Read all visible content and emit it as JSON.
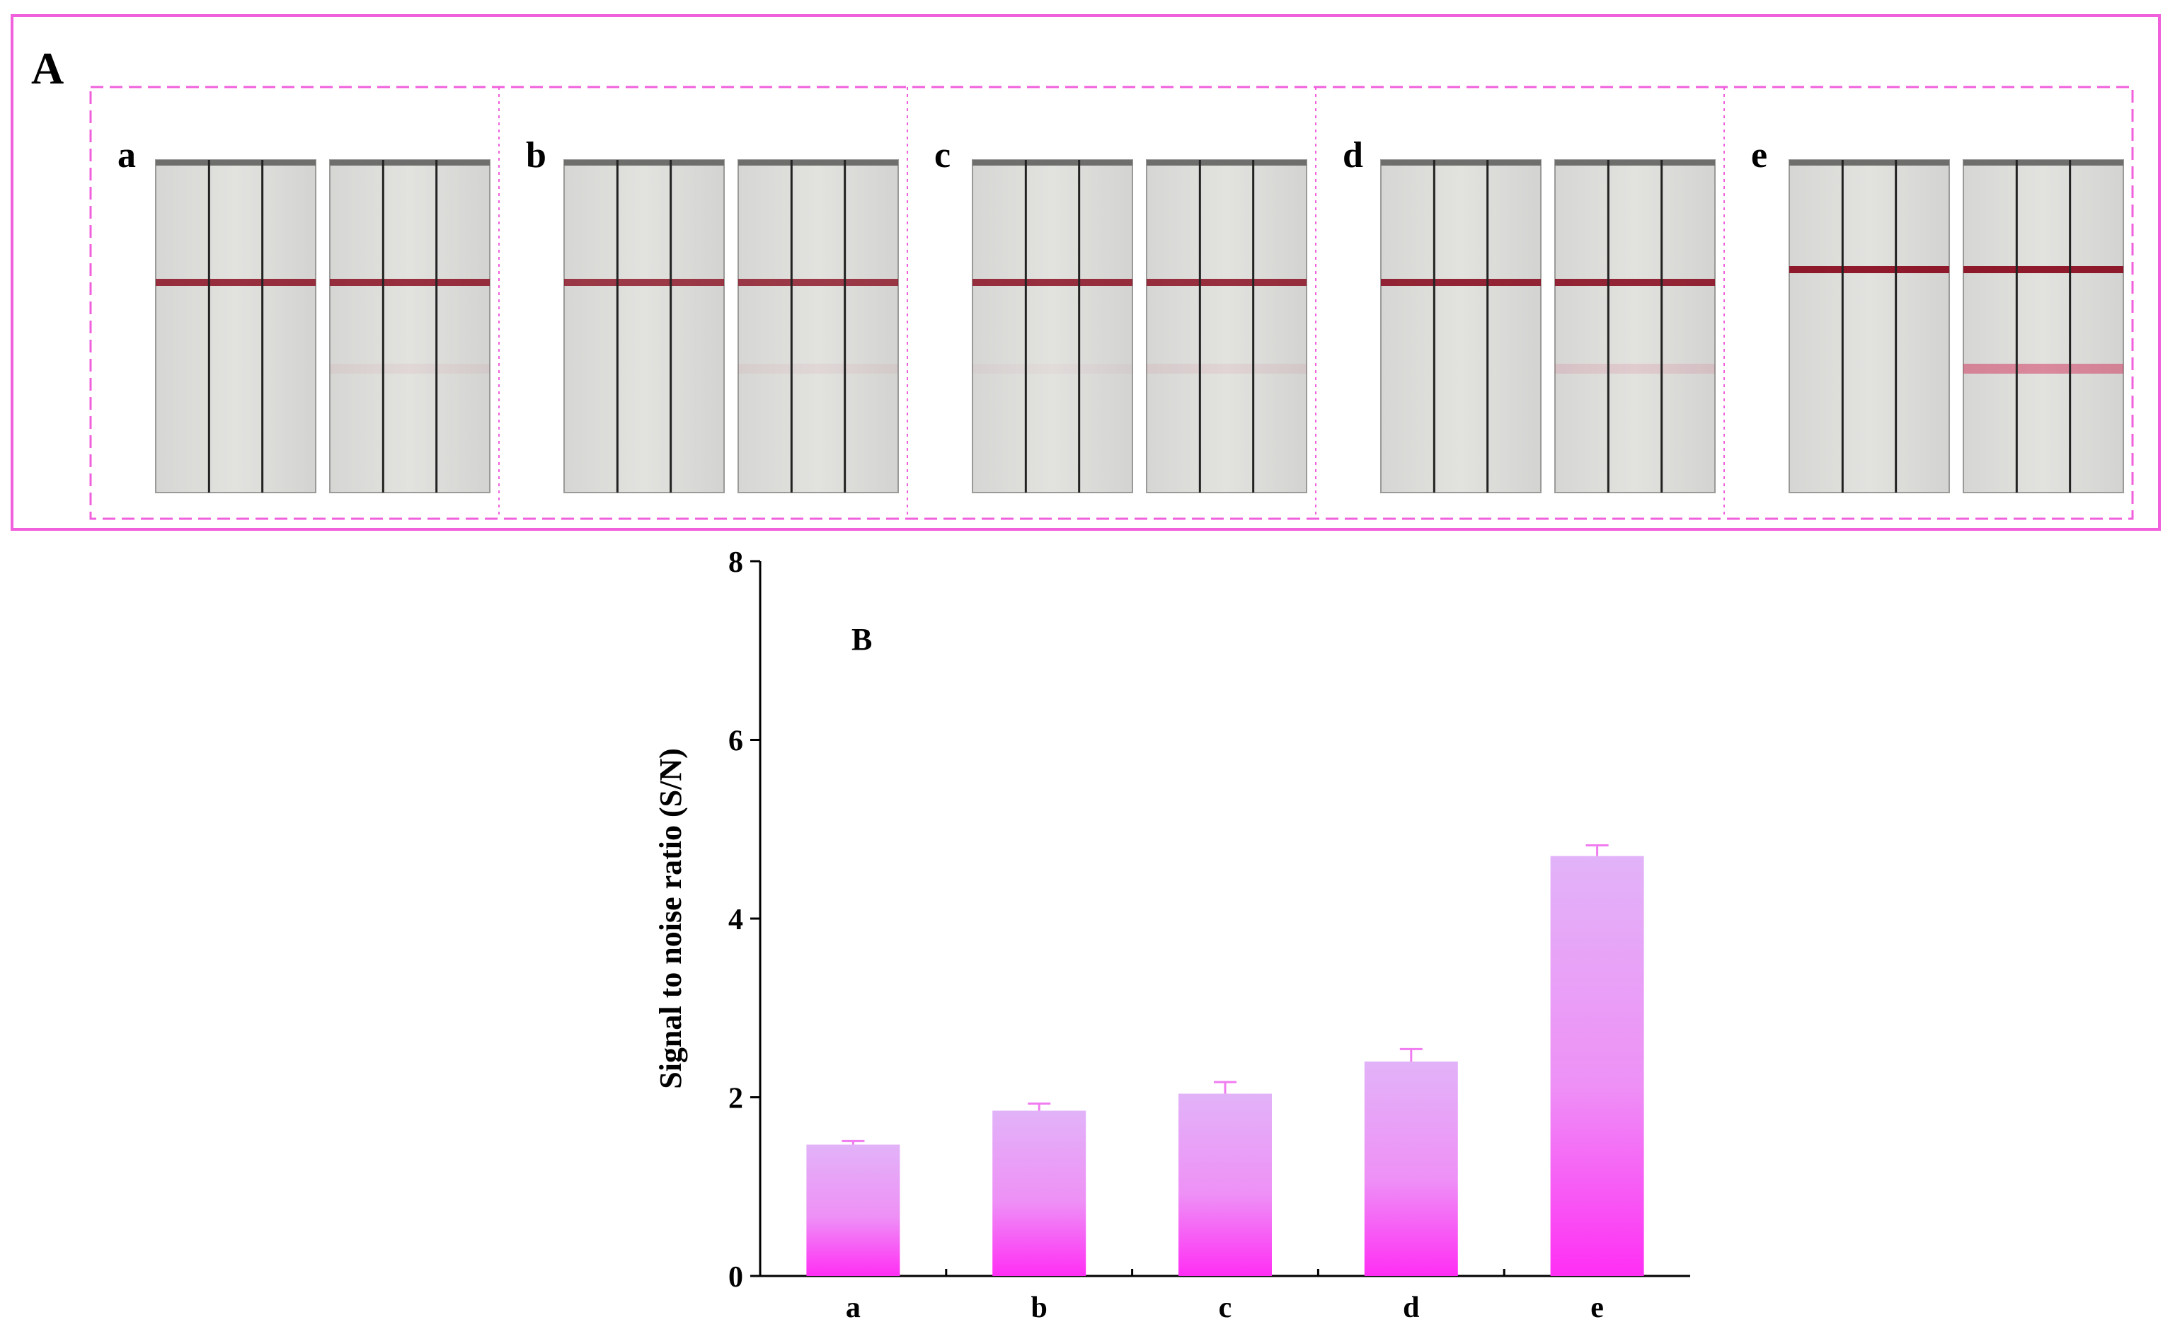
{
  "panel_a": {
    "label": "A",
    "groups": [
      {
        "label": "a",
        "control_intensity": 0.85,
        "test_intensity": [
          0.0,
          0.06
        ]
      },
      {
        "label": "b",
        "control_intensity": 0.8,
        "test_intensity": [
          0.0,
          0.06
        ]
      },
      {
        "label": "c",
        "control_intensity": 0.85,
        "test_intensity": [
          0.04,
          0.08
        ]
      },
      {
        "label": "d",
        "control_intensity": 0.9,
        "test_intensity": [
          0.0,
          0.12
        ]
      },
      {
        "label": "e",
        "control_intensity": 0.95,
        "test_intensity": [
          0.0,
          0.5
        ]
      }
    ]
  },
  "chart_data": {
    "type": "bar",
    "panel_label": "B",
    "categories": [
      "a",
      "b",
      "c",
      "d",
      "e"
    ],
    "values": [
      1.47,
      1.85,
      2.04,
      2.4,
      4.7
    ],
    "errors": [
      0.04,
      0.08,
      0.13,
      0.14,
      0.12
    ],
    "title": "",
    "xlabel": "",
    "ylabel": "Signal to noise ratio (S/N)",
    "ylim": [
      0,
      8
    ],
    "yticks": [
      0,
      2,
      4,
      6,
      8
    ],
    "grid": false,
    "bar_gradient": [
      "#E2B3F8",
      "#FF2EF4"
    ]
  }
}
